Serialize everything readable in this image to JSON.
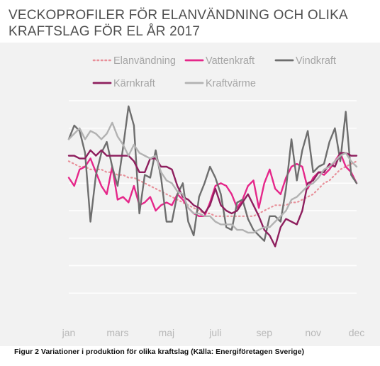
{
  "chart_data": {
    "type": "line",
    "title": "VECKOPROFILER FÖR ELANVÄNDNING OCH OLIKA KRAFTSLAG FÖR EL ÅR 2017",
    "xlabel": "",
    "ylabel": "",
    "x_ticks": [
      "jan",
      "mars",
      "maj",
      "juli",
      "sep",
      "nov",
      "dec"
    ],
    "x_tick_weeks": [
      1,
      10,
      19,
      28,
      37,
      46,
      54
    ],
    "xlim": [
      1,
      54
    ],
    "ylim": [
      0,
      8
    ],
    "gridlines": [
      1,
      2,
      3,
      4,
      5,
      6,
      7,
      8
    ],
    "grid": true,
    "legend": "top",
    "series": [
      {
        "name": "Elanvändning",
        "color": "#e8909a",
        "style": "dotted",
        "values": [
          5.8,
          5.7,
          5.6,
          5.6,
          5.5,
          5.5,
          5.5,
          5.4,
          5.4,
          5.3,
          5.3,
          5.2,
          5.2,
          5.1,
          5.0,
          4.9,
          4.8,
          4.7,
          4.6,
          4.5,
          4.4,
          4.3,
          4.2,
          4.1,
          4.0,
          3.9,
          3.9,
          3.8,
          3.8,
          3.8,
          3.8,
          3.8,
          3.8,
          3.8,
          3.8,
          3.9,
          4.0,
          4.1,
          4.2,
          4.2,
          4.2,
          4.3,
          4.3,
          4.4,
          4.5,
          4.6,
          4.8,
          5.0,
          5.1,
          5.3,
          5.5,
          5.6,
          5.7,
          5.8
        ]
      },
      {
        "name": "Vattenkraft",
        "color": "#e5278a",
        "style": "solid",
        "values": [
          5.2,
          4.9,
          5.5,
          5.6,
          5.9,
          5.4,
          4.9,
          4.6,
          5.6,
          4.4,
          4.5,
          4.3,
          4.9,
          4.2,
          4.3,
          4.5,
          4.0,
          4.2,
          4.3,
          4.2,
          4.6,
          4.4,
          4.1,
          3.9,
          3.8,
          3.8,
          4.3,
          4.9,
          5.0,
          4.9,
          4.6,
          4.1,
          4.4,
          4.9,
          5.1,
          4.1,
          5.0,
          5.5,
          4.8,
          4.6,
          5.2,
          5.6,
          5.7,
          5.6,
          4.8,
          5.2,
          5.4,
          5.3,
          5.5,
          5.8,
          6.1,
          5.6,
          5.4,
          5.0
        ]
      },
      {
        "name": "Vindkraft",
        "color": "#6e6e6e",
        "style": "solid",
        "values": [
          6.6,
          7.1,
          6.9,
          6.1,
          3.6,
          5.3,
          6.1,
          6.5,
          5.6,
          4.9,
          6.3,
          7.8,
          7.1,
          3.9,
          5.3,
          5.2,
          6.2,
          5.2,
          3.6,
          3.6,
          4.6,
          5.0,
          3.6,
          3.1,
          4.5,
          5.0,
          5.6,
          5.2,
          4.6,
          3.4,
          3.3,
          4.3,
          4.4,
          3.7,
          3.3,
          3.1,
          2.9,
          3.8,
          3.8,
          3.6,
          4.8,
          6.6,
          5.1,
          6.2,
          6.9,
          5.4,
          5.6,
          5.7,
          6.5,
          7.0,
          5.8,
          7.6,
          5.3,
          5.0
        ]
      },
      {
        "name": "Kärnkraft",
        "color": "#8e1f5e",
        "style": "solid",
        "values": [
          6.0,
          6.0,
          5.9,
          5.9,
          6.2,
          6.0,
          6.2,
          6.0,
          6.0,
          6.0,
          6.0,
          6.0,
          5.8,
          5.4,
          5.4,
          5.9,
          5.9,
          5.6,
          5.6,
          5.5,
          4.9,
          4.5,
          4.4,
          4.2,
          4.1,
          3.9,
          4.2,
          4.8,
          4.2,
          4.0,
          3.9,
          4.0,
          4.3,
          4.6,
          4.2,
          3.8,
          3.3,
          3.1,
          2.7,
          3.4,
          3.7,
          3.6,
          3.5,
          4.0,
          5.0,
          5.1,
          5.4,
          5.4,
          5.7,
          5.6,
          6.1,
          6.1,
          6.0,
          6.0
        ]
      },
      {
        "name": "Kraftvärme",
        "color": "#b2b2b2",
        "style": "solid",
        "values": [
          6.6,
          6.8,
          7.0,
          6.6,
          6.9,
          6.8,
          6.6,
          6.8,
          7.2,
          6.7,
          6.4,
          6.0,
          6.4,
          6.1,
          6.0,
          5.9,
          6.0,
          5.4,
          5.1,
          5.0,
          4.7,
          4.6,
          4.1,
          3.9,
          3.9,
          3.8,
          3.8,
          3.6,
          3.5,
          3.5,
          3.5,
          3.3,
          3.3,
          3.2,
          3.2,
          3.3,
          3.4,
          3.4,
          3.6,
          3.8,
          4.0,
          4.4,
          4.5,
          4.7,
          4.9,
          5.0,
          5.2,
          5.5,
          5.6,
          5.8,
          6.0,
          6.1,
          5.8,
          5.6
        ]
      }
    ]
  },
  "caption": "Figur 2 Variationer i produktion för olika kraftslag (Källa: Energiföretagen Sverige)"
}
